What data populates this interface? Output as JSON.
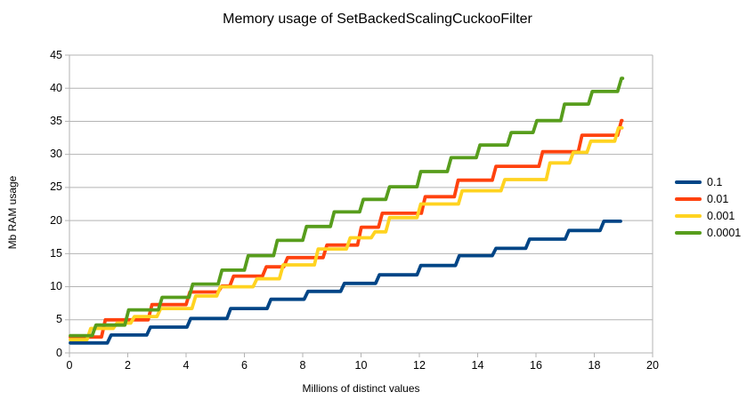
{
  "title": "Memory usage of SetBackedScalingCuckooFilter",
  "chart_data": {
    "type": "line",
    "subtype": "step-staircase",
    "title": "Memory usage of SetBackedScalingCuckooFilter",
    "xlabel": "Millions of distinct values",
    "ylabel": "Mb RAM usage",
    "xlim": [
      0,
      20
    ],
    "ylim": [
      0,
      45
    ],
    "x_ticks": [
      0,
      2,
      4,
      6,
      8,
      10,
      12,
      14,
      16,
      18,
      20
    ],
    "y_ticks": [
      0,
      5,
      10,
      15,
      20,
      25,
      30,
      35,
      40,
      45
    ],
    "grid": "horizontal",
    "grid_color": "#b3b3b3",
    "legend_position": "right",
    "series": [
      {
        "name": "0.1",
        "color": "#004586",
        "end_x": 18.9,
        "steps": [
          [
            0,
            1.5
          ],
          [
            1.3,
            2.7
          ],
          [
            2.65,
            3.9
          ],
          [
            4.03,
            5.2
          ],
          [
            5.4,
            6.7
          ],
          [
            6.78,
            8.1
          ],
          [
            8.05,
            9.3
          ],
          [
            9.3,
            10.5
          ],
          [
            10.5,
            11.8
          ],
          [
            11.92,
            13.2
          ],
          [
            13.24,
            14.7
          ],
          [
            14.5,
            15.8
          ],
          [
            15.65,
            17.2
          ],
          [
            17.0,
            18.5
          ],
          [
            18.2,
            19.9
          ]
        ]
      },
      {
        "name": "0.01",
        "color": "#ff420e",
        "end_x": 18.95,
        "steps": [
          [
            0,
            2.4
          ],
          [
            1.1,
            5.0
          ],
          [
            2.7,
            7.3
          ],
          [
            4.0,
            9.2
          ],
          [
            5.1,
            10.1
          ],
          [
            5.5,
            11.6
          ],
          [
            6.62,
            13.0
          ],
          [
            7.35,
            14.4
          ],
          [
            8.7,
            16.3
          ],
          [
            9.88,
            19.0
          ],
          [
            10.6,
            21.1
          ],
          [
            12.07,
            23.6
          ],
          [
            13.2,
            26.1
          ],
          [
            14.5,
            28.2
          ],
          [
            16.1,
            30.4
          ],
          [
            17.45,
            32.9
          ],
          [
            18.8,
            35.1
          ]
        ]
      },
      {
        "name": "0.001",
        "color": "#ffd320",
        "end_x": 18.95,
        "steps": [
          [
            0,
            2.0
          ],
          [
            0.6,
            3.7
          ],
          [
            1.5,
            4.5
          ],
          [
            2.1,
            5.5
          ],
          [
            3.0,
            6.7
          ],
          [
            4.2,
            8.6
          ],
          [
            5.05,
            10.0
          ],
          [
            6.3,
            11.2
          ],
          [
            7.2,
            13.3
          ],
          [
            8.4,
            15.7
          ],
          [
            9.5,
            17.4
          ],
          [
            10.35,
            18.3
          ],
          [
            10.85,
            20.45
          ],
          [
            11.92,
            22.5
          ],
          [
            13.34,
            24.5
          ],
          [
            14.8,
            26.2
          ],
          [
            16.35,
            28.7
          ],
          [
            17.15,
            30.3
          ],
          [
            17.75,
            32.0
          ],
          [
            18.7,
            34.0
          ]
        ]
      },
      {
        "name": "0.0001",
        "color": "#579d1c",
        "end_x": 18.97,
        "steps": [
          [
            0,
            2.6
          ],
          [
            0.78,
            4.2
          ],
          [
            1.9,
            6.5
          ],
          [
            3.05,
            8.4
          ],
          [
            4.1,
            10.4
          ],
          [
            5.1,
            12.5
          ],
          [
            6.0,
            14.7
          ],
          [
            7.0,
            17.0
          ],
          [
            8.0,
            19.1
          ],
          [
            8.95,
            21.3
          ],
          [
            9.95,
            23.2
          ],
          [
            10.85,
            25.1
          ],
          [
            11.92,
            27.4
          ],
          [
            12.96,
            29.5
          ],
          [
            13.95,
            31.4
          ],
          [
            15.02,
            33.3
          ],
          [
            15.9,
            35.1
          ],
          [
            16.85,
            37.6
          ],
          [
            17.8,
            39.5
          ],
          [
            18.8,
            41.5
          ]
        ]
      }
    ]
  }
}
